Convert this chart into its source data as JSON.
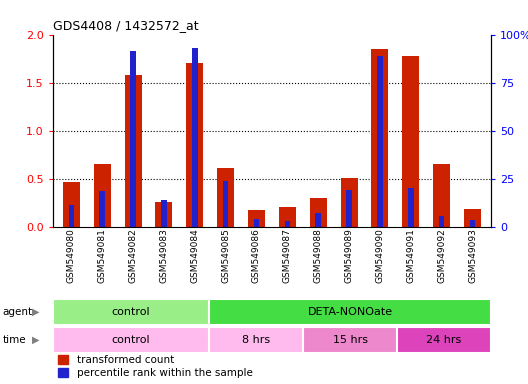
{
  "title": "GDS4408 / 1432572_at",
  "samples": [
    "GSM549080",
    "GSM549081",
    "GSM549082",
    "GSM549083",
    "GSM549084",
    "GSM549085",
    "GSM549086",
    "GSM549087",
    "GSM549088",
    "GSM549089",
    "GSM549090",
    "GSM549091",
    "GSM549092",
    "GSM549093"
  ],
  "red_values": [
    0.46,
    0.65,
    1.58,
    0.26,
    1.7,
    0.61,
    0.17,
    0.2,
    0.3,
    0.51,
    1.85,
    1.78,
    0.65,
    0.18
  ],
  "blue_percentile": [
    11,
    18.5,
    91.5,
    14,
    93,
    23.5,
    4,
    3,
    7,
    19,
    89,
    20,
    5.5,
    3.5
  ],
  "ylim_left": [
    0,
    2
  ],
  "ylim_right": [
    0,
    100
  ],
  "yticks_left": [
    0,
    0.5,
    1.0,
    1.5,
    2.0
  ],
  "yticks_right": [
    0,
    25,
    50,
    75,
    100
  ],
  "bar_color_red": "#cc2200",
  "bar_color_blue": "#2222cc",
  "agent_control_color": "#99ee88",
  "agent_deta_color": "#44dd44",
  "time_control_color": "#ffbbee",
  "time_8hrs_color": "#ffbbee",
  "time_15hrs_color": "#ee88cc",
  "time_24hrs_color": "#dd44bb",
  "legend_red_label": "transformed count",
  "legend_blue_label": "percentile rank within the sample",
  "background_color": "#ffffff",
  "bar_width": 0.55,
  "blue_bar_width": 0.18
}
